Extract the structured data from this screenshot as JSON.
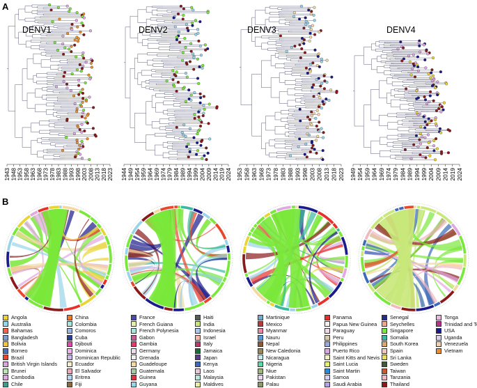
{
  "panels": {
    "a_label": "A",
    "b_label": "B",
    "serotypes": [
      "DENV1",
      "DENV2",
      "DENV3",
      "DENV4"
    ]
  },
  "trees": [
    {
      "name": "DENV1",
      "ticks": [
        "1943",
        "1948",
        "1953",
        "1958",
        "1963",
        "1968",
        "1973",
        "1978",
        "1983",
        "1988",
        "1993",
        "1998",
        "2003",
        "2008",
        "2013",
        "2018",
        "2023"
      ]
    },
    {
      "name": "DENV2",
      "ticks": [
        "1944",
        "1949",
        "1954",
        "1959",
        "1964",
        "1969",
        "1974",
        "1979",
        "1984",
        "1989",
        "1994",
        "1999",
        "2004",
        "2009",
        "2014",
        "2019",
        "2024"
      ]
    },
    {
      "name": "DENV3",
      "ticks": [
        "1953",
        "1958",
        "1963",
        "1968",
        "1973",
        "1978",
        "1983",
        "1988",
        "1993",
        "1998",
        "2003",
        "2008",
        "2013",
        "2018",
        "2023"
      ]
    },
    {
      "name": "DENV4",
      "ticks": [
        "1949",
        "1954",
        "1959",
        "1964",
        "1969",
        "1974",
        "1979",
        "1984",
        "1989",
        "1994",
        "1999",
        "2004",
        "2009",
        "2014",
        "2019",
        "2024"
      ]
    }
  ],
  "legend": [
    [
      {
        "name": "Angola",
        "color": "#e8d534"
      },
      {
        "name": "Australia",
        "color": "#8fd9e8"
      },
      {
        "name": "Bahamas",
        "color": "#f2644a"
      },
      {
        "name": "Bangladesh",
        "color": "#7a9ccf"
      },
      {
        "name": "Bolivia",
        "color": "#f2c63c"
      },
      {
        "name": "Borneo",
        "color": "#4a6fb8"
      },
      {
        "name": "Brazil",
        "color": "#e8452c"
      },
      {
        "name": "British Virgin Islands",
        "color": "#d9a6d9"
      },
      {
        "name": "Brunei",
        "color": "#b7e6b0"
      },
      {
        "name": "Cambodia",
        "color": "#e0a8e0"
      },
      {
        "name": "Chile",
        "color": "#3d9e8c"
      }
    ],
    [
      {
        "name": "China",
        "color": "#f07a2a"
      },
      {
        "name": "Colombia",
        "color": "#a8e6e0"
      },
      {
        "name": "Comoros",
        "color": "#9bb8e0"
      },
      {
        "name": "Cuba",
        "color": "#2b3f8f"
      },
      {
        "name": "Djibouti",
        "color": "#e04aa8"
      },
      {
        "name": "Dominica",
        "color": "#e8b8e8"
      },
      {
        "name": "Dominican Republic",
        "color": "#c9b8e8"
      },
      {
        "name": "Ecuador",
        "color": "#f5eec8"
      },
      {
        "name": "El Salvador",
        "color": "#f0a8b8"
      },
      {
        "name": "Eritrea",
        "color": "#b8d4f0"
      },
      {
        "name": "Fiji",
        "color": "#8a6b3a"
      }
    ],
    [
      {
        "name": "France",
        "color": "#4a4aa8"
      },
      {
        "name": "French Guiana",
        "color": "#e6f0a8"
      },
      {
        "name": "French Polynesia",
        "color": "#a8e8d8"
      },
      {
        "name": "Gabon",
        "color": "#c85a9a"
      },
      {
        "name": "Gambia",
        "color": "#e83a6a"
      },
      {
        "name": "Germany",
        "color": "#e8e0f0"
      },
      {
        "name": "Grenada",
        "color": "#f0f0f0"
      },
      {
        "name": "Guadeloupe",
        "color": "#f5d8a0"
      },
      {
        "name": "Guatemala",
        "color": "#a8c8a0"
      },
      {
        "name": "Guinea",
        "color": "#e0303a"
      },
      {
        "name": "Guyana",
        "color": "#9ad4e8"
      }
    ],
    [
      {
        "name": "Haiti",
        "color": "#5a5a5a"
      },
      {
        "name": "India",
        "color": "#c8e87a"
      },
      {
        "name": "Indonesia",
        "color": "#a8c8f0"
      },
      {
        "name": "Israel",
        "color": "#f5b8a8"
      },
      {
        "name": "Italy",
        "color": "#b83a6a"
      },
      {
        "name": "Jamaica",
        "color": "#1a6a3a"
      },
      {
        "name": "Japan",
        "color": "#5a3a8a"
      },
      {
        "name": "Kenya",
        "color": "#3a6ab8"
      },
      {
        "name": "Laos",
        "color": "#e8c8d8"
      },
      {
        "name": "Malaysia",
        "color": "#b8e8d8"
      },
      {
        "name": "Maldives",
        "color": "#e8f0a0"
      }
    ],
    [
      {
        "name": "Martinique",
        "color": "#7aa8c8"
      },
      {
        "name": "Mexico",
        "color": "#b83a3a"
      },
      {
        "name": "Myanmar",
        "color": "#e88aa8"
      },
      {
        "name": "Nauru",
        "color": "#5a9ad8"
      },
      {
        "name": "Nepal",
        "color": "#8a5a3a"
      },
      {
        "name": "New Caledonia",
        "color": "#9a8a5a"
      },
      {
        "name": "Nicaragua",
        "color": "#c8e8f0"
      },
      {
        "name": "Nigeria",
        "color": "#5ad8a8"
      },
      {
        "name": "Niue",
        "color": "#9ab87a"
      },
      {
        "name": "Pakistan",
        "color": "#e8d8f0"
      },
      {
        "name": "Palau",
        "color": "#8a9a6a"
      }
    ],
    [
      {
        "name": "Panama",
        "color": "#e8302a"
      },
      {
        "name": "Papua New Guinea",
        "color": "#f5f0e8"
      },
      {
        "name": "Paraguay",
        "color": "#f0d8e8"
      },
      {
        "name": "Peru",
        "color": "#d8c8a8"
      },
      {
        "name": "Philippines",
        "color": "#9aa8e0"
      },
      {
        "name": "Puerto Rico",
        "color": "#d8a8e8"
      },
      {
        "name": "Saint Kitts and Nevis",
        "color": "#f0f0c0"
      },
      {
        "name": "Saint Lucia",
        "color": "#e8f070"
      },
      {
        "name": "Saint Martin",
        "color": "#2a8ad8"
      },
      {
        "name": "Samoa",
        "color": "#d8d0f0"
      },
      {
        "name": "Saudi Arabia",
        "color": "#b8a0e8"
      }
    ],
    [
      {
        "name": "Senegal",
        "color": "#2a2a8a"
      },
      {
        "name": "Seychelles",
        "color": "#f0a890"
      },
      {
        "name": "Singapore",
        "color": "#7ae83a"
      },
      {
        "name": "Somalia",
        "color": "#3ab8a0"
      },
      {
        "name": "South Korea",
        "color": "#d8a870"
      },
      {
        "name": "Spain",
        "color": "#f0c8c0"
      },
      {
        "name": "Sri Lanka",
        "color": "#e8e05a"
      },
      {
        "name": "Sweden",
        "color": "#3a5a3a"
      },
      {
        "name": "Taiwan",
        "color": "#c85a30"
      },
      {
        "name": "Tanzania",
        "color": "#f0b8c0"
      },
      {
        "name": "Thailand",
        "color": "#8a1a1a"
      }
    ],
    [
      {
        "name": "Tonga",
        "color": "#e8b8e0"
      },
      {
        "name": "Trinidad and Tobago",
        "color": "#b8308a"
      },
      {
        "name": "USA",
        "color": "#1a1a8a"
      },
      {
        "name": "Uganda",
        "color": "#d8d0e8"
      },
      {
        "name": "Venezuela",
        "color": "#f0d0b0"
      },
      {
        "name": "Vietnam",
        "color": "#e89030"
      }
    ]
  ]
}
